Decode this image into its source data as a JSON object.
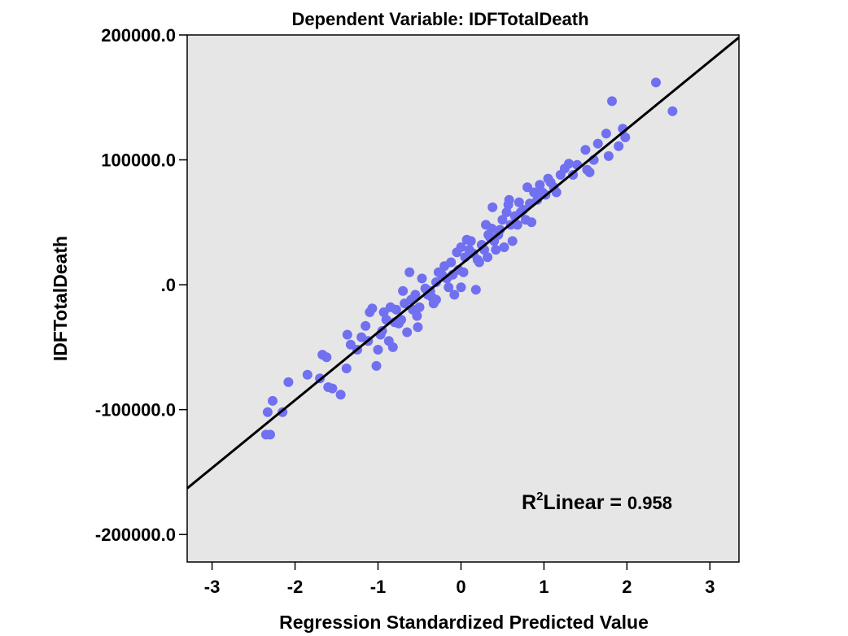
{
  "chart_data": {
    "type": "scatter",
    "title": "Dependent Variable: IDFTotalDeath",
    "xlabel": "Regression Standardized Predicted Value",
    "ylabel": "IDFTotalDeath",
    "xlim": [
      -3.3,
      3.35
    ],
    "ylim": [
      -222000,
      200000
    ],
    "x_ticks": [
      -3,
      -2,
      -1,
      0,
      1,
      2,
      3
    ],
    "x_tick_labels": [
      "-3",
      "-2",
      "-1",
      "0",
      "1",
      "2",
      "3"
    ],
    "y_ticks": [
      -200000,
      -100000,
      0,
      100000,
      200000
    ],
    "y_tick_labels": [
      "-200000.0",
      "-100000.0",
      ".0",
      "100000.0",
      "200000.0"
    ],
    "grid": false,
    "background_color": "#e6e6e6",
    "marker_color": "#7070f0",
    "fit_line_color": "#000000",
    "fit_line": {
      "x": [
        -3.3,
        3.35
      ],
      "y": [
        -163000,
        198000
      ]
    },
    "annotation": {
      "prefix": "R",
      "superscript": "2",
      "label": "Linear = ",
      "value": "0.958"
    },
    "points": [
      [
        -2.35,
        -120000
      ],
      [
        -2.3,
        -120000
      ],
      [
        -2.33,
        -102000
      ],
      [
        -2.27,
        -93000
      ],
      [
        -2.15,
        -102000
      ],
      [
        -2.08,
        -78000
      ],
      [
        -1.85,
        -72000
      ],
      [
        -1.7,
        -75000
      ],
      [
        -1.67,
        -56000
      ],
      [
        -1.62,
        -58000
      ],
      [
        -1.6,
        -82000
      ],
      [
        -1.55,
        -83000
      ],
      [
        -1.45,
        -88000
      ],
      [
        -1.38,
        -67000
      ],
      [
        -1.37,
        -40000
      ],
      [
        -1.33,
        -48000
      ],
      [
        -1.25,
        -52000
      ],
      [
        -1.2,
        -42000
      ],
      [
        -1.15,
        -33000
      ],
      [
        -1.12,
        -45000
      ],
      [
        -1.1,
        -22000
      ],
      [
        -1.07,
        -19000
      ],
      [
        -1.02,
        -65000
      ],
      [
        -1.0,
        -52000
      ],
      [
        -0.97,
        -40000
      ],
      [
        -0.95,
        -37000
      ],
      [
        -0.93,
        -22000
      ],
      [
        -0.9,
        -28000
      ],
      [
        -0.87,
        -45000
      ],
      [
        -0.85,
        -18000
      ],
      [
        -0.82,
        -50000
      ],
      [
        -0.8,
        -30000
      ],
      [
        -0.78,
        -20000
      ],
      [
        -0.75,
        -31000
      ],
      [
        -0.72,
        -28000
      ],
      [
        -0.7,
        -5000
      ],
      [
        -0.68,
        -15000
      ],
      [
        -0.65,
        -38000
      ],
      [
        -0.62,
        10000
      ],
      [
        -0.6,
        -12000
      ],
      [
        -0.58,
        -20000
      ],
      [
        -0.55,
        -8000
      ],
      [
        -0.53,
        -25000
      ],
      [
        -0.52,
        -34000
      ],
      [
        -0.5,
        -18000
      ],
      [
        -0.47,
        5000
      ],
      [
        -0.43,
        -3000
      ],
      [
        -0.4,
        -8000
      ],
      [
        -0.37,
        -5000
      ],
      [
        -0.35,
        -10000
      ],
      [
        -0.33,
        -15000
      ],
      [
        -0.3,
        -12000
      ],
      [
        -0.3,
        2000
      ],
      [
        -0.27,
        10000
      ],
      [
        -0.23,
        8000
      ],
      [
        -0.2,
        15000
      ],
      [
        -0.17,
        5000
      ],
      [
        -0.15,
        -2000
      ],
      [
        -0.12,
        18000
      ],
      [
        -0.1,
        8000
      ],
      [
        -0.08,
        -8000
      ],
      [
        -0.05,
        26000
      ],
      [
        -0.03,
        12000
      ],
      [
        0.0,
        30000
      ],
      [
        0.0,
        -2000
      ],
      [
        0.03,
        10000
      ],
      [
        0.05,
        22000
      ],
      [
        0.07,
        36000
      ],
      [
        0.1,
        28000
      ],
      [
        0.12,
        35000
      ],
      [
        0.15,
        25000
      ],
      [
        0.18,
        -4000
      ],
      [
        0.2,
        20000
      ],
      [
        0.22,
        18000
      ],
      [
        0.25,
        32000
      ],
      [
        0.28,
        28000
      ],
      [
        0.3,
        48000
      ],
      [
        0.32,
        22000
      ],
      [
        0.33,
        40000
      ],
      [
        0.35,
        38000
      ],
      [
        0.37,
        45000
      ],
      [
        0.38,
        62000
      ],
      [
        0.4,
        35000
      ],
      [
        0.42,
        28000
      ],
      [
        0.45,
        40000
      ],
      [
        0.47,
        44000
      ],
      [
        0.5,
        52000
      ],
      [
        0.52,
        30000
      ],
      [
        0.55,
        58000
      ],
      [
        0.57,
        64000
      ],
      [
        0.58,
        68000
      ],
      [
        0.6,
        48000
      ],
      [
        0.62,
        35000
      ],
      [
        0.65,
        55000
      ],
      [
        0.68,
        48000
      ],
      [
        0.7,
        66000
      ],
      [
        0.72,
        58000
      ],
      [
        0.75,
        60000
      ],
      [
        0.78,
        52000
      ],
      [
        0.8,
        78000
      ],
      [
        0.83,
        65000
      ],
      [
        0.85,
        50000
      ],
      [
        0.88,
        74000
      ],
      [
        0.92,
        68000
      ],
      [
        0.95,
        80000
      ],
      [
        0.98,
        74000
      ],
      [
        1.02,
        72000
      ],
      [
        1.05,
        85000
      ],
      [
        1.08,
        82000
      ],
      [
        1.12,
        78000
      ],
      [
        1.15,
        74000
      ],
      [
        1.2,
        88000
      ],
      [
        1.25,
        93000
      ],
      [
        1.3,
        97000
      ],
      [
        1.35,
        88000
      ],
      [
        1.4,
        96000
      ],
      [
        1.5,
        108000
      ],
      [
        1.52,
        92000
      ],
      [
        1.55,
        90000
      ],
      [
        1.6,
        100000
      ],
      [
        1.65,
        113000
      ],
      [
        1.75,
        121000
      ],
      [
        1.78,
        103000
      ],
      [
        1.82,
        147000
      ],
      [
        1.9,
        111000
      ],
      [
        1.95,
        125000
      ],
      [
        1.98,
        118000
      ],
      [
        2.35,
        162000
      ],
      [
        2.55,
        139000
      ]
    ]
  }
}
